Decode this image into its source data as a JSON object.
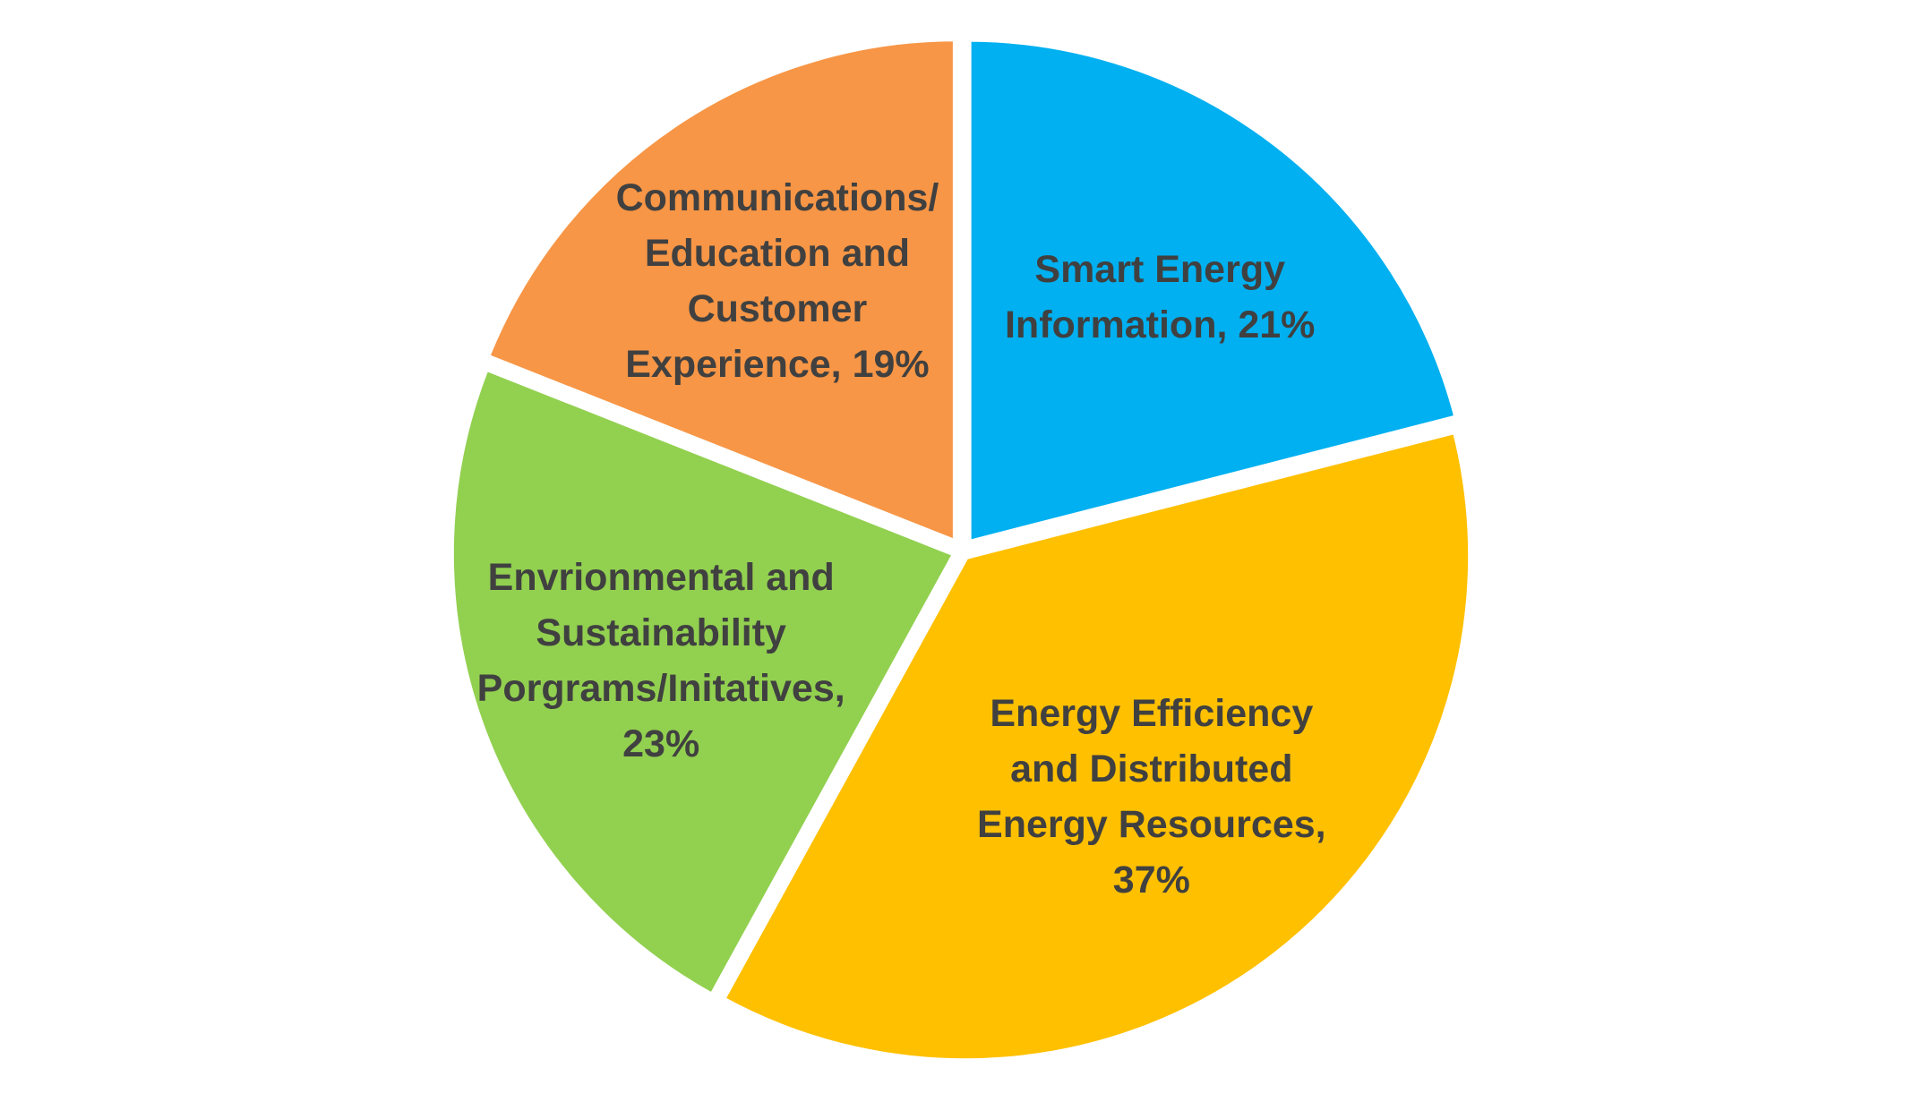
{
  "chart_data": {
    "type": "pie",
    "slices": [
      {
        "label": [
          "Smart Energy",
          "Information, 21%"
        ],
        "value": 21,
        "color": "#00B0F0"
      },
      {
        "label": [
          "Energy Efficiency",
          "and Distributed",
          "Energy Resources,",
          "37%"
        ],
        "value": 37,
        "color": "#FFC000"
      },
      {
        "label": [
          "Envrionmental and",
          "Sustainability",
          "Porgrams/Initatives,",
          "23%"
        ],
        "value": 23,
        "color": "#92D050"
      },
      {
        "label": [
          "Communications/",
          "Education and",
          "Customer",
          "Experience, 19%"
        ],
        "value": 19,
        "color": "#F79646"
      }
    ]
  }
}
